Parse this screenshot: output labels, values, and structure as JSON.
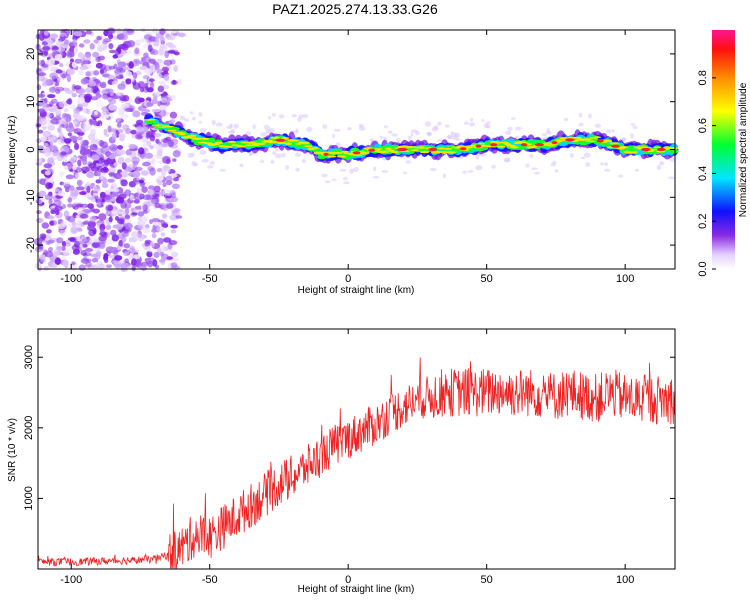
{
  "title": "PAZ1.2025.274.13.33.G26",
  "chart_data": [
    {
      "type": "heatmap",
      "xlabel": "Height of straight line (km)",
      "ylabel": "Frequency (Hz)",
      "xlim": [
        -112,
        118
      ],
      "ylim": [
        -25,
        25
      ],
      "x_ticks": [
        -100,
        -50,
        0,
        50,
        100
      ],
      "y_ticks": [
        20,
        10,
        0,
        -10,
        -20
      ],
      "x_tick_labels": [
        "-100",
        "-50",
        "0",
        "50",
        "100"
      ],
      "y_tick_labels": [
        "20",
        "10",
        "0",
        "-10",
        "-20"
      ],
      "ridge": {
        "x": [
          -112,
          -75,
          -68,
          -62,
          -55,
          -45,
          -35,
          -25,
          -15,
          -10,
          -5,
          0,
          10,
          20,
          30,
          40,
          50,
          60,
          70,
          80,
          90,
          100,
          110,
          118
        ],
        "freq": [
          10,
          7,
          5,
          4,
          2,
          1,
          1,
          2,
          1,
          -1,
          -1,
          -1,
          0,
          0,
          0,
          0,
          1,
          1,
          1,
          2,
          2,
          0,
          0,
          0
        ]
      },
      "colorbar": {
        "label": "Normalized spectral amplitude",
        "range": [
          0.0,
          1.0
        ],
        "ticks": [
          0.0,
          0.2,
          0.4,
          0.6,
          0.8
        ],
        "tick_labels": [
          "0.0",
          "0.2",
          "0.4",
          "0.6",
          "0.8"
        ]
      }
    },
    {
      "type": "line",
      "xlabel": "Height of straight line (km)",
      "ylabel": "SNR (10 * v/v)",
      "xlim": [
        -112,
        118
      ],
      "ylim": [
        0,
        3400
      ],
      "x_ticks": [
        -100,
        -50,
        0,
        50,
        100
      ],
      "y_ticks": [
        1000,
        2000,
        3000
      ],
      "x_tick_labels": [
        "-100",
        "-50",
        "0",
        "50",
        "100"
      ],
      "y_tick_labels": [
        "1000",
        "2000",
        "3000"
      ],
      "series": [
        {
          "name": "SNR",
          "color": "#ee2222",
          "x": [
            -112,
            -100,
            -90,
            -80,
            -70,
            -65,
            -60,
            -55,
            -50,
            -45,
            -40,
            -35,
            -30,
            -25,
            -20,
            -15,
            -10,
            -5,
            0,
            5,
            10,
            15,
            20,
            25,
            30,
            35,
            40,
            45,
            50,
            55,
            60,
            65,
            70,
            75,
            80,
            85,
            90,
            95,
            100,
            105,
            110,
            118
          ],
          "y": [
            100,
            100,
            110,
            120,
            140,
            200,
            300,
            500,
            450,
            600,
            750,
            900,
            1050,
            1200,
            1300,
            1450,
            1600,
            1750,
            1850,
            1950,
            2050,
            2200,
            2300,
            2400,
            2450,
            2500,
            2500,
            2500,
            2500,
            2520,
            2500,
            2500,
            2480,
            2450,
            2500,
            2450,
            2420,
            2500,
            2420,
            2400,
            2400,
            2400
          ]
        }
      ]
    }
  ],
  "colors": {
    "line": "#ee2222",
    "axis": "#000000",
    "background": "#ffffff"
  }
}
